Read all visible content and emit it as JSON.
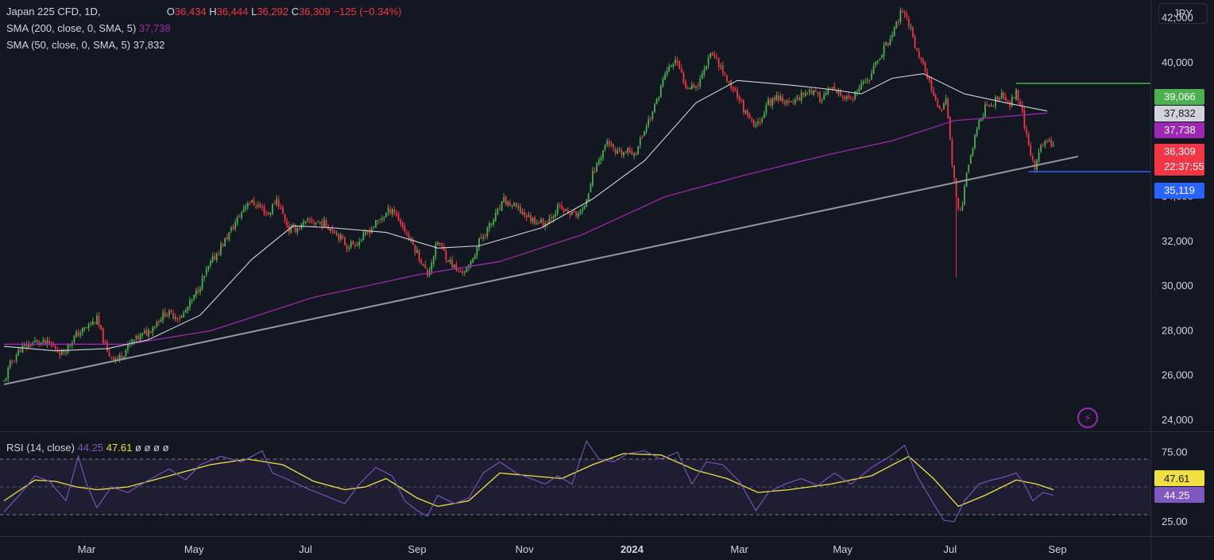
{
  "header": {
    "symbol": "Japan 225 CFD, 1D,",
    "o_label": "O",
    "o_value": "36,434",
    "h_label": "H",
    "h_value": "36,444",
    "l_label": "L",
    "l_value": "36,292",
    "c_label": "C",
    "c_value": "36,309",
    "change": "−125 (−0.34%)",
    "sma200_label": "SMA (200, close, 0, SMA, 5)",
    "sma200_value": "37,738",
    "sma50_label": "SMA (50, close, 0, SMA, 5)",
    "sma50_value": "37,832",
    "currency": "JPY"
  },
  "rsi_legend": {
    "label": "RSI (14, close)",
    "value1": "44.25",
    "value2": "47.61",
    "extra": "ø ø ø ø"
  },
  "colors": {
    "background": "#131722",
    "up": "#26a69a",
    "down": "#f23645",
    "bull_candle": "#4caf50",
    "sma50": "#d1d4dc",
    "sma200": "#9c27b0",
    "trendline": "#9598a1",
    "rsi": "#7e57c2",
    "rsi_ma": "#f0e042",
    "level_high": "#4caf50",
    "level_low": "#2962ff"
  },
  "chart_data": {
    "type": "candlestick",
    "timeframe": "1D",
    "y_axis": {
      "ticks": [
        "42,000",
        "40,000",
        "34,000",
        "32,000",
        "30,000",
        "28,000",
        "26,000",
        "24,000"
      ],
      "ylim": [
        23500,
        42800
      ]
    },
    "x_axis": {
      "ticks": [
        "Mar",
        "May",
        "Jul",
        "Sep",
        "Nov",
        "2024",
        "Mar",
        "May",
        "Jul",
        "Sep"
      ]
    },
    "price_labels": [
      {
        "value": "39,066",
        "color": "#4caf50"
      },
      {
        "value": "37,832",
        "color": "#d1d4dc"
      },
      {
        "value": "37,738",
        "color": "#9c27b0"
      },
      {
        "value": "36,309",
        "color": "#f23645",
        "countdown": "22:37:55"
      },
      {
        "value": "35,119",
        "color": "#2962ff"
      }
    ],
    "price_keypoints": [
      [
        0,
        25700
      ],
      [
        3,
        26500
      ],
      [
        8,
        27200
      ],
      [
        15,
        27500
      ],
      [
        22,
        27400
      ],
      [
        28,
        27000
      ],
      [
        35,
        27800
      ],
      [
        45,
        28500
      ],
      [
        50,
        27000
      ],
      [
        55,
        26700
      ],
      [
        62,
        27500
      ],
      [
        70,
        28000
      ],
      [
        78,
        28800
      ],
      [
        86,
        28600
      ],
      [
        92,
        29500
      ],
      [
        100,
        31000
      ],
      [
        110,
        32500
      ],
      [
        118,
        33800
      ],
      [
        123,
        33600
      ],
      [
        128,
        33200
      ],
      [
        132,
        33900
      ],
      [
        138,
        32500
      ],
      [
        142,
        32600
      ],
      [
        148,
        32900
      ],
      [
        155,
        32800
      ],
      [
        160,
        32500
      ],
      [
        166,
        31800
      ],
      [
        172,
        32000
      ],
      [
        180,
        32800
      ],
      [
        188,
        33500
      ],
      [
        194,
        32500
      ],
      [
        200,
        31500
      ],
      [
        205,
        30500
      ],
      [
        210,
        32000
      ],
      [
        215,
        31200
      ],
      [
        220,
        30600
      ],
      [
        225,
        30800
      ],
      [
        230,
        32000
      ],
      [
        236,
        32800
      ],
      [
        242,
        33800
      ],
      [
        248,
        33500
      ],
      [
        255,
        33000
      ],
      [
        262,
        32800
      ],
      [
        268,
        33500
      ],
      [
        275,
        33200
      ],
      [
        280,
        33300
      ],
      [
        285,
        35000
      ],
      [
        292,
        36500
      ],
      [
        296,
        35900
      ],
      [
        302,
        36000
      ],
      [
        306,
        36000
      ],
      [
        310,
        37000
      ],
      [
        315,
        38000
      ],
      [
        320,
        39500
      ],
      [
        325,
        40100
      ],
      [
        330,
        39000
      ],
      [
        336,
        39000
      ],
      [
        342,
        40500
      ],
      [
        346,
        40000
      ],
      [
        350,
        39200
      ],
      [
        355,
        38600
      ],
      [
        360,
        37500
      ],
      [
        364,
        37100
      ],
      [
        370,
        38200
      ],
      [
        375,
        38500
      ],
      [
        380,
        38100
      ],
      [
        385,
        38500
      ],
      [
        390,
        38800
      ],
      [
        395,
        38400
      ],
      [
        400,
        38800
      ],
      [
        405,
        38500
      ],
      [
        410,
        38300
      ],
      [
        415,
        38900
      ],
      [
        420,
        39500
      ],
      [
        425,
        40500
      ],
      [
        430,
        41200
      ],
      [
        434,
        42200
      ],
      [
        438,
        41800
      ],
      [
        442,
        40500
      ],
      [
        446,
        39700
      ],
      [
        450,
        38400
      ],
      [
        453,
        37800
      ],
      [
        456,
        38500
      ],
      [
        459,
        35500
      ],
      [
        462,
        33300
      ],
      [
        464,
        33800
      ],
      [
        467,
        35500
      ],
      [
        471,
        37000
      ],
      [
        475,
        38000
      ],
      [
        479,
        38200
      ],
      [
        483,
        38500
      ],
      [
        487,
        38100
      ],
      [
        490,
        38800
      ],
      [
        493,
        37700
      ],
      [
        496,
        36200
      ],
      [
        499,
        35300
      ],
      [
        502,
        36200
      ],
      [
        505,
        36600
      ],
      [
        508,
        36309
      ]
    ],
    "sma50_keypoints": [
      [
        0,
        27300
      ],
      [
        25,
        27100
      ],
      [
        50,
        27200
      ],
      [
        70,
        27600
      ],
      [
        95,
        28700
      ],
      [
        120,
        31200
      ],
      [
        140,
        32700
      ],
      [
        160,
        32600
      ],
      [
        185,
        32400
      ],
      [
        210,
        31700
      ],
      [
        230,
        31800
      ],
      [
        260,
        32600
      ],
      [
        285,
        33900
      ],
      [
        310,
        35600
      ],
      [
        335,
        38200
      ],
      [
        355,
        39200
      ],
      [
        380,
        39000
      ],
      [
        400,
        38800
      ],
      [
        415,
        38600
      ],
      [
        430,
        39300
      ],
      [
        445,
        39500
      ],
      [
        465,
        38600
      ],
      [
        485,
        38200
      ],
      [
        505,
        37832
      ]
    ],
    "sma200_keypoints": [
      [
        0,
        27400
      ],
      [
        60,
        27400
      ],
      [
        100,
        28000
      ],
      [
        150,
        29500
      ],
      [
        200,
        30500
      ],
      [
        240,
        31100
      ],
      [
        280,
        32300
      ],
      [
        320,
        34000
      ],
      [
        360,
        35000
      ],
      [
        400,
        35900
      ],
      [
        430,
        36500
      ],
      [
        460,
        37400
      ],
      [
        505,
        37738
      ]
    ],
    "trendline": {
      "start": [
        0,
        25600
      ],
      "end": [
        520,
        35800
      ]
    },
    "levels": [
      {
        "value": 39066,
        "start": 490
      },
      {
        "value": 35119,
        "start": 496
      }
    ],
    "rsi": {
      "ticks": [
        "75.00",
        "25.00"
      ],
      "ylim": [
        19,
        86
      ],
      "band": [
        30,
        70
      ],
      "value": "44.25",
      "ma_value": "47.61",
      "keypoints": [
        [
          0,
          32
        ],
        [
          8,
          45
        ],
        [
          15,
          58
        ],
        [
          22,
          54
        ],
        [
          30,
          40
        ],
        [
          36,
          72
        ],
        [
          40,
          52
        ],
        [
          45,
          35
        ],
        [
          52,
          50
        ],
        [
          60,
          46
        ],
        [
          70,
          55
        ],
        [
          80,
          63
        ],
        [
          88,
          55
        ],
        [
          95,
          66
        ],
        [
          105,
          72
        ],
        [
          115,
          68
        ],
        [
          125,
          76
        ],
        [
          130,
          60
        ],
        [
          138,
          55
        ],
        [
          148,
          48
        ],
        [
          155,
          44
        ],
        [
          165,
          38
        ],
        [
          172,
          52
        ],
        [
          180,
          64
        ],
        [
          188,
          58
        ],
        [
          194,
          40
        ],
        [
          200,
          33
        ],
        [
          205,
          29
        ],
        [
          210,
          44
        ],
        [
          218,
          38
        ],
        [
          225,
          42
        ],
        [
          232,
          60
        ],
        [
          240,
          68
        ],
        [
          248,
          60
        ],
        [
          255,
          56
        ],
        [
          262,
          52
        ],
        [
          268,
          58
        ],
        [
          275,
          52
        ],
        [
          282,
          83
        ],
        [
          288,
          70
        ],
        [
          295,
          68
        ],
        [
          302,
          74
        ],
        [
          310,
          76
        ],
        [
          318,
          70
        ],
        [
          326,
          75
        ],
        [
          333,
          52
        ],
        [
          340,
          68
        ],
        [
          348,
          66
        ],
        [
          356,
          54
        ],
        [
          364,
          33
        ],
        [
          370,
          46
        ],
        [
          378,
          52
        ],
        [
          386,
          56
        ],
        [
          394,
          51
        ],
        [
          402,
          60
        ],
        [
          410,
          52
        ],
        [
          420,
          64
        ],
        [
          430,
          73
        ],
        [
          436,
          80
        ],
        [
          442,
          58
        ],
        [
          450,
          38
        ],
        [
          455,
          26
        ],
        [
          460,
          25
        ],
        [
          465,
          40
        ],
        [
          472,
          52
        ],
        [
          478,
          55
        ],
        [
          484,
          57
        ],
        [
          490,
          60
        ],
        [
          494,
          52
        ],
        [
          498,
          40
        ],
        [
          503,
          46
        ],
        [
          508,
          44
        ]
      ],
      "ma_keypoints": [
        [
          0,
          40
        ],
        [
          15,
          55
        ],
        [
          25,
          54
        ],
        [
          35,
          50
        ],
        [
          45,
          48
        ],
        [
          60,
          50
        ],
        [
          80,
          58
        ],
        [
          100,
          66
        ],
        [
          118,
          70
        ],
        [
          135,
          66
        ],
        [
          150,
          54
        ],
        [
          165,
          48
        ],
        [
          175,
          50
        ],
        [
          185,
          56
        ],
        [
          200,
          42
        ],
        [
          210,
          36
        ],
        [
          225,
          40
        ],
        [
          240,
          60
        ],
        [
          255,
          58
        ],
        [
          270,
          56
        ],
        [
          285,
          66
        ],
        [
          300,
          74
        ],
        [
          318,
          73
        ],
        [
          335,
          62
        ],
        [
          350,
          56
        ],
        [
          365,
          46
        ],
        [
          380,
          48
        ],
        [
          400,
          52
        ],
        [
          420,
          58
        ],
        [
          438,
          72
        ],
        [
          450,
          56
        ],
        [
          462,
          36
        ],
        [
          475,
          44
        ],
        [
          490,
          55
        ],
        [
          500,
          52
        ],
        [
          508,
          48
        ]
      ]
    }
  }
}
